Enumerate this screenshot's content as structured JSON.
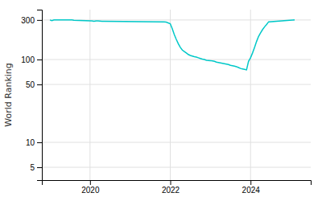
{
  "chart_data": {
    "type": "line",
    "y_label": "World Ranking",
    "x": [
      2019.0,
      2019.05,
      2019.1,
      2019.55,
      2019.6,
      2020.05,
      2020.1,
      2020.15,
      2020.2,
      2020.25,
      2020.3,
      2020.35,
      2021.85,
      2021.9,
      2022.0,
      2022.05,
      2022.1,
      2022.15,
      2022.2,
      2022.25,
      2022.3,
      2022.35,
      2022.4,
      2022.45,
      2022.5,
      2022.55,
      2022.6,
      2022.65,
      2022.7,
      2022.75,
      2022.8,
      2022.85,
      2022.9,
      2023.0,
      2023.05,
      2023.1,
      2023.15,
      2023.2,
      2023.25,
      2023.3,
      2023.35,
      2023.4,
      2023.45,
      2023.5,
      2023.55,
      2023.6,
      2023.65,
      2023.7,
      2023.75,
      2023.8,
      2023.85,
      2023.9,
      2023.95,
      2024.0,
      2024.05,
      2024.1,
      2024.15,
      2024.2,
      2024.25,
      2024.3,
      2024.35,
      2024.4,
      2024.45,
      2025.1
    ],
    "values": [
      300,
      295,
      300,
      300,
      298,
      292,
      290,
      292,
      292,
      291,
      290,
      290,
      285,
      283,
      270,
      235,
      200,
      175,
      155,
      140,
      130,
      125,
      120,
      115,
      112,
      110,
      108,
      107,
      105,
      103,
      101,
      100,
      98,
      97,
      96,
      95,
      93,
      92,
      91,
      90,
      89,
      88,
      87,
      85,
      84,
      83,
      82,
      80,
      78,
      77,
      76,
      75,
      95,
      105,
      120,
      140,
      165,
      190,
      210,
      230,
      248,
      265,
      285,
      300
    ],
    "color": "#00c8c8",
    "xlim": [
      2018.8,
      2025.5
    ],
    "xticks": [
      2020,
      2022,
      2024
    ],
    "ylim": [
      3.5,
      400
    ],
    "yticks": [
      5,
      10,
      50,
      100,
      300
    ],
    "log": "y",
    "grid": true
  }
}
